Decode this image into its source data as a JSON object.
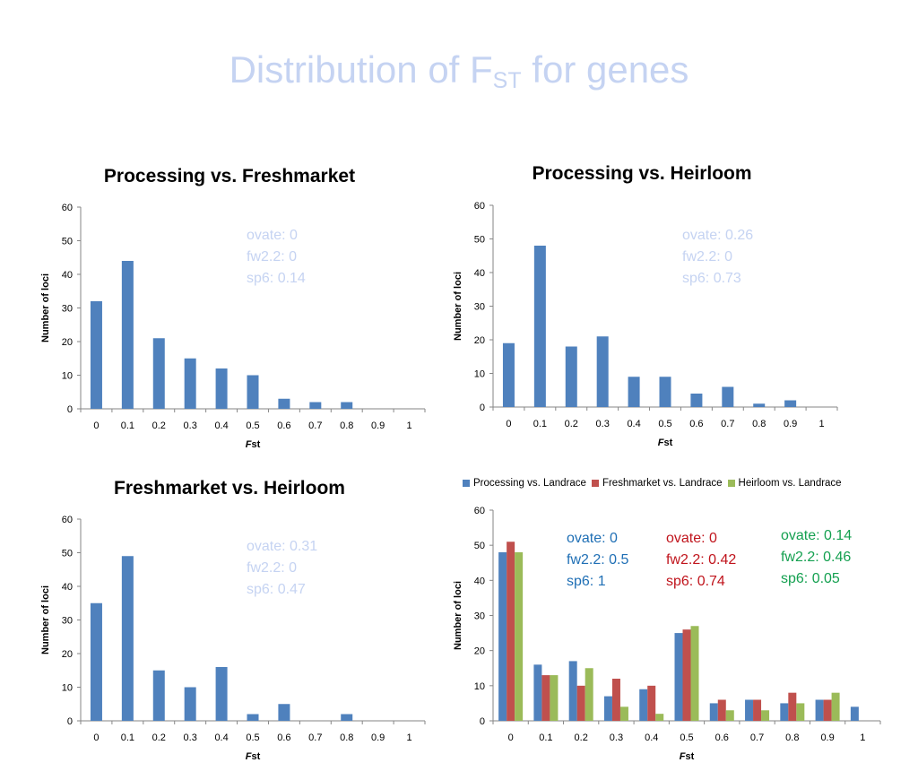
{
  "slide": {
    "title_main": "Distribution of F",
    "title_sub": "ST",
    "title_tail": " for genes"
  },
  "colors": {
    "series1": "#4f81bd",
    "series2": "#c0504d",
    "series3": "#9bbb59",
    "pale_annotation": "#c5d3f2",
    "title": "#c5d3f2"
  },
  "chart_data": [
    {
      "type": "bar",
      "title": "Processing vs. Freshmarket",
      "xlabel_italic": "F",
      "xlabel_rest": "st",
      "ylabel": "Number of loci",
      "categories": [
        "0",
        "0.1",
        "0.2",
        "0.3",
        "0.4",
        "0.5",
        "0.6",
        "0.7",
        "0.8",
        "0.9",
        "1"
      ],
      "yticks": [
        "0",
        "10",
        "20",
        "30",
        "40",
        "50",
        "60"
      ],
      "ylim": [
        0,
        60
      ],
      "series": [
        {
          "values": [
            32,
            44,
            21,
            15,
            12,
            10,
            3,
            2,
            2,
            0,
            0
          ]
        }
      ],
      "annotations": [
        {
          "lines": [
            "ovate: 0",
            "fw2.2: 0",
            "sp6: 0.14"
          ],
          "color": "#c5d3f2"
        }
      ]
    },
    {
      "type": "bar",
      "title": "Processing vs. Heirloom",
      "xlabel_italic": "F",
      "xlabel_rest": "st",
      "ylabel": "Number of loci",
      "categories": [
        "0",
        "0.1",
        "0.2",
        "0.3",
        "0.4",
        "0.5",
        "0.6",
        "0.7",
        "0.8",
        "0.9",
        "1"
      ],
      "yticks": [
        "0",
        "10",
        "20",
        "30",
        "40",
        "50",
        "60"
      ],
      "ylim": [
        0,
        60
      ],
      "series": [
        {
          "values": [
            19,
            48,
            18,
            21,
            9,
            9,
            4,
            6,
            1,
            2,
            0
          ]
        }
      ],
      "annotations": [
        {
          "lines": [
            "ovate: 0.26",
            "fw2.2: 0",
            "sp6: 0.73"
          ],
          "color": "#c5d3f2"
        }
      ]
    },
    {
      "type": "bar",
      "title": "Freshmarket vs. Heirloom",
      "xlabel_italic": "F",
      "xlabel_rest": "st",
      "ylabel": "Number of loci",
      "categories": [
        "0",
        "0.1",
        "0.2",
        "0.3",
        "0.4",
        "0.5",
        "0.6",
        "0.7",
        "0.8",
        "0.9",
        "1"
      ],
      "yticks": [
        "0",
        "10",
        "20",
        "30",
        "40",
        "50",
        "60"
      ],
      "ylim": [
        0,
        60
      ],
      "series": [
        {
          "values": [
            35,
            49,
            15,
            10,
            16,
            2,
            5,
            0,
            2,
            0,
            0
          ]
        }
      ],
      "annotations": [
        {
          "lines": [
            "ovate: 0.31",
            "fw2.2: 0",
            "sp6:  0.47"
          ],
          "color": "#c5d3f2"
        }
      ]
    },
    {
      "type": "bar",
      "title": "",
      "xlabel_italic": "F",
      "xlabel_rest": "st",
      "ylabel": "Number of loci",
      "legend_position": "top",
      "categories": [
        "0",
        "0.1",
        "0.2",
        "0.3",
        "0.4",
        "0.5",
        "0.6",
        "0.7",
        "0.8",
        "0.9",
        "1"
      ],
      "yticks": [
        "0",
        "10",
        "20",
        "30",
        "40",
        "50",
        "60"
      ],
      "ylim": [
        0,
        60
      ],
      "series": [
        {
          "name": "Processing vs. Landrace",
          "values": [
            48,
            16,
            17,
            7,
            9,
            25,
            5,
            6,
            5,
            6,
            4
          ]
        },
        {
          "name": "Freshmarket vs. Landrace",
          "values": [
            51,
            13,
            10,
            12,
            10,
            26,
            6,
            6,
            8,
            6,
            0
          ]
        },
        {
          "name": "Heirloom vs. Landrace",
          "values": [
            48,
            13,
            15,
            4,
            2,
            27,
            3,
            3,
            5,
            8,
            0
          ]
        }
      ],
      "annotations": [
        {
          "lines": [
            "ovate: 0",
            "fw2.2: 0.5",
            "sp6: 1"
          ],
          "color": "#1f6fb5"
        },
        {
          "lines": [
            "ovate: 0",
            "fw2.2: 0.42",
            "sp6: 0.74"
          ],
          "color": "#c0141c"
        },
        {
          "lines": [
            "ovate: 0.14",
            "fw2.2: 0.46",
            "sp6: 0.05"
          ],
          "color": "#14a050"
        }
      ]
    }
  ]
}
